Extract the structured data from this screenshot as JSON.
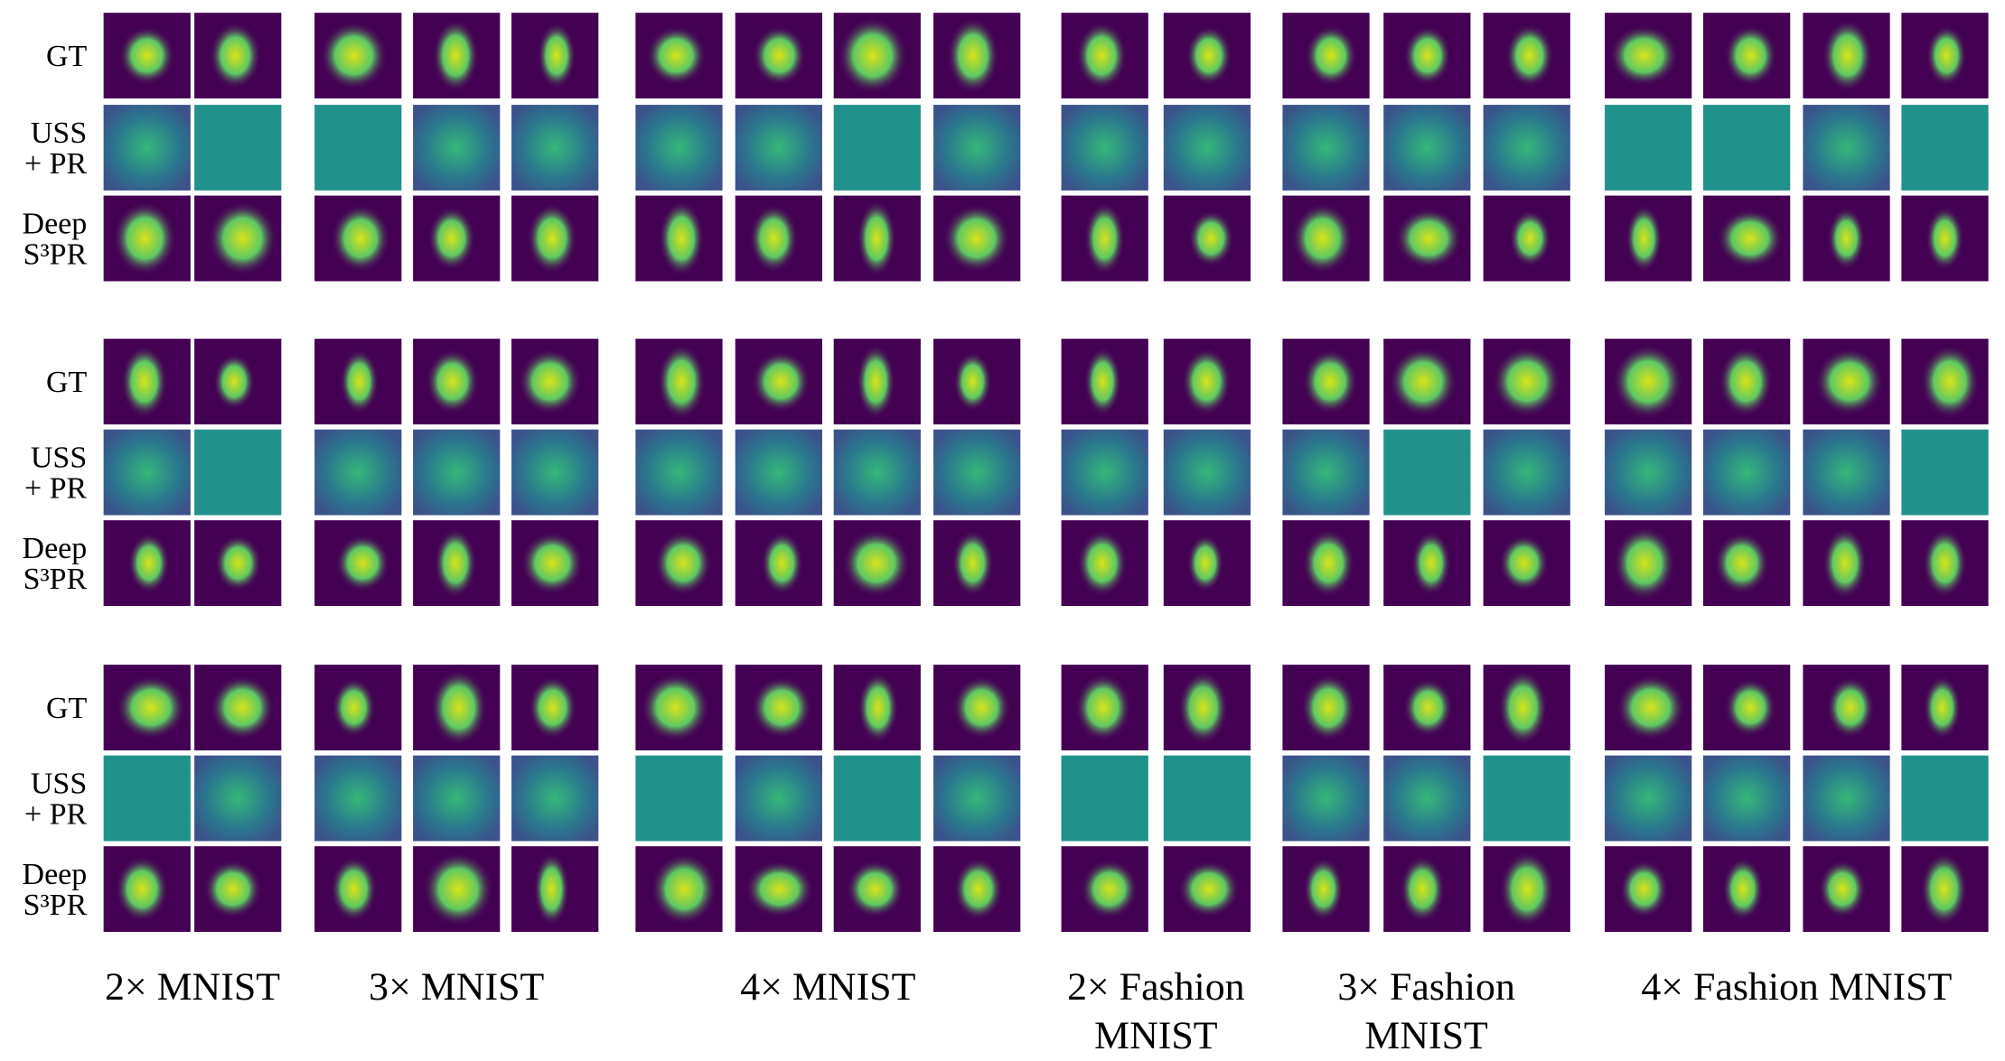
{
  "blocks": [
    {
      "rows": [
        {
          "lines": [
            "GT"
          ]
        },
        {
          "lines": [
            "USS",
            "+ PR"
          ]
        },
        {
          "lines": [
            "Deep",
            "S³PR"
          ]
        }
      ]
    },
    {
      "rows": [
        {
          "lines": [
            "GT"
          ]
        },
        {
          "lines": [
            "USS",
            "+ PR"
          ]
        },
        {
          "lines": [
            "Deep",
            "S³PR"
          ]
        }
      ]
    },
    {
      "rows": [
        {
          "lines": [
            "GT"
          ]
        },
        {
          "lines": [
            "USS",
            "+ PR"
          ]
        },
        {
          "lines": [
            "Deep",
            "S³PR"
          ]
        }
      ]
    }
  ],
  "columns": [
    {
      "lines": [
        "2× MNIST"
      ]
    },
    {
      "lines": [
        "3× MNIST"
      ]
    },
    {
      "lines": [
        "4× MNIST"
      ]
    },
    {
      "lines": [
        "2× Fashion",
        "MNIST"
      ]
    },
    {
      "lines": [
        "3× Fashion",
        "MNIST"
      ]
    },
    {
      "lines": [
        "4× Fashion MNIST"
      ]
    }
  ]
}
